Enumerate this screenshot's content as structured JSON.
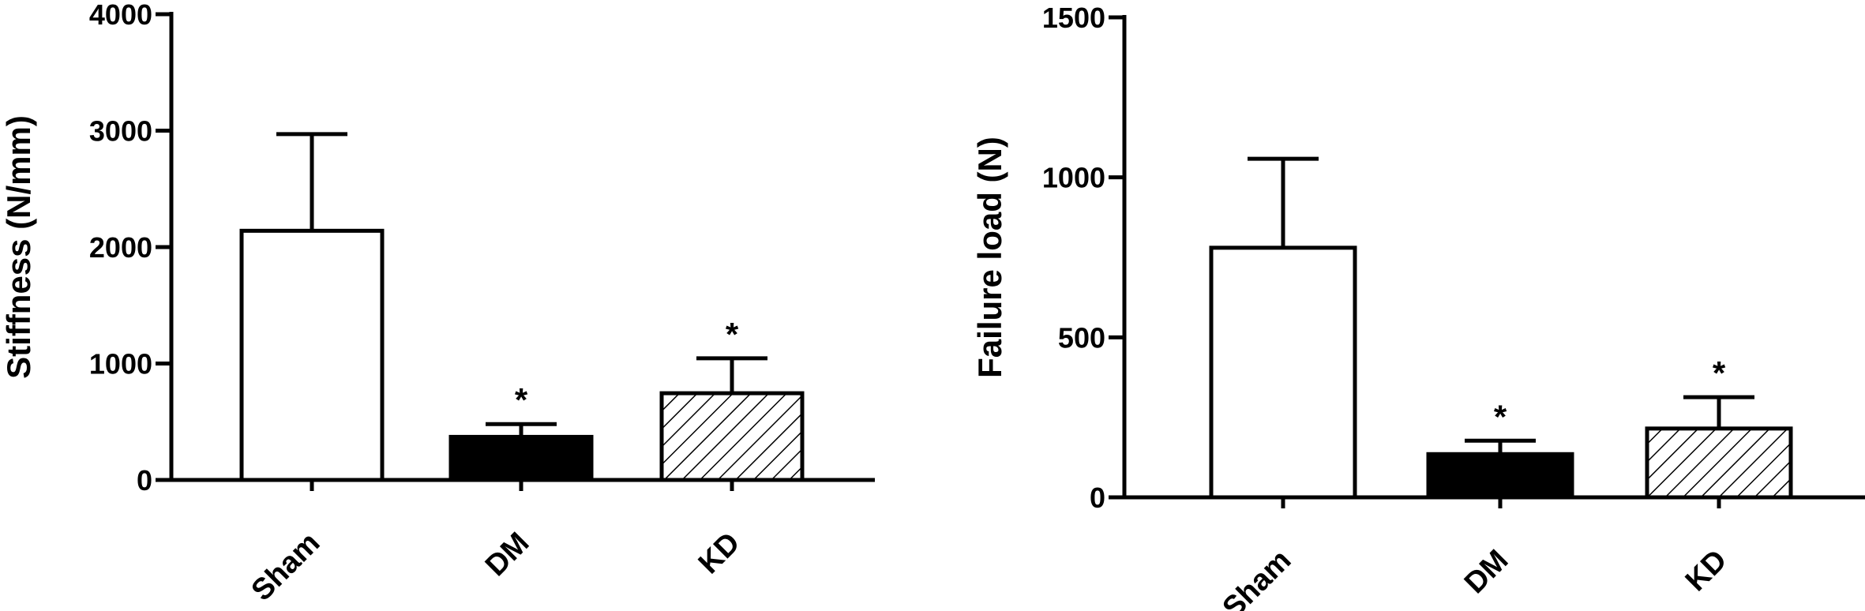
{
  "chart_data": [
    {
      "type": "bar",
      "ylabel": "Stiffness (N/mm)",
      "ylim": [
        0,
        4000
      ],
      "yticks": [
        0,
        1000,
        2000,
        3000,
        4000
      ],
      "categories": [
        "Sham",
        "DM",
        "KD"
      ],
      "values": [
        2140,
        370,
        745
      ],
      "errors": [
        830,
        110,
        300
      ],
      "significance": [
        "",
        "*",
        "*"
      ],
      "fills": [
        "white",
        "black",
        "hatched"
      ],
      "grid": false
    },
    {
      "type": "bar",
      "ylabel": "Failure load (N)",
      "ylim": [
        0,
        1500
      ],
      "yticks": [
        0,
        500,
        1000,
        1500
      ],
      "categories": [
        "Sham",
        "DM",
        "KD"
      ],
      "values": [
        780,
        135,
        215
      ],
      "errors": [
        278,
        42,
        98
      ],
      "significance": [
        "",
        "*",
        "*"
      ],
      "fills": [
        "white",
        "black",
        "hatched"
      ],
      "grid": false
    }
  ]
}
